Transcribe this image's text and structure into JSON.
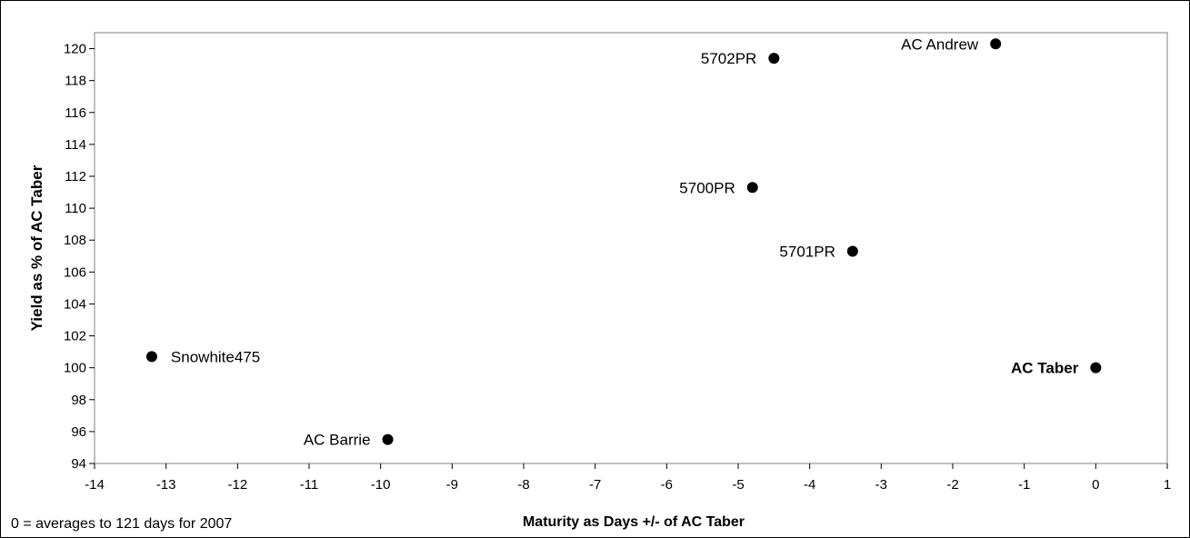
{
  "chart_data": {
    "type": "scatter",
    "xlabel": "Maturity as Days +/- of AC Taber",
    "ylabel": "Yield as % of AC Taber",
    "note": "0 = averages to 121 days for 2007",
    "xlim": [
      -14,
      1
    ],
    "ylim": [
      94,
      121
    ],
    "xticks": [
      -14,
      -13,
      -12,
      -11,
      -10,
      -9,
      -8,
      -7,
      -6,
      -5,
      -4,
      -3,
      -2,
      -1,
      0,
      1
    ],
    "yticks": [
      94,
      96,
      98,
      100,
      102,
      104,
      106,
      108,
      110,
      112,
      114,
      116,
      118,
      120
    ],
    "grid": false,
    "marker_color": "#000000",
    "points": [
      {
        "label": "Snowhite475",
        "x": -13.2,
        "y": 100.7,
        "label_side": "right",
        "bold": false
      },
      {
        "label": "AC Barrie",
        "x": -9.9,
        "y": 95.5,
        "label_side": "left",
        "bold": false
      },
      {
        "label": "5700PR",
        "x": -4.8,
        "y": 111.3,
        "label_side": "left",
        "bold": false
      },
      {
        "label": "5702PR",
        "x": -4.5,
        "y": 119.4,
        "label_side": "left",
        "bold": false
      },
      {
        "label": "5701PR",
        "x": -3.4,
        "y": 107.3,
        "label_side": "left",
        "bold": false
      },
      {
        "label": "AC Andrew",
        "x": -1.4,
        "y": 120.3,
        "label_side": "left",
        "bold": false
      },
      {
        "label": "AC Taber",
        "x": 0,
        "y": 100.0,
        "label_side": "left",
        "bold": true
      }
    ]
  }
}
